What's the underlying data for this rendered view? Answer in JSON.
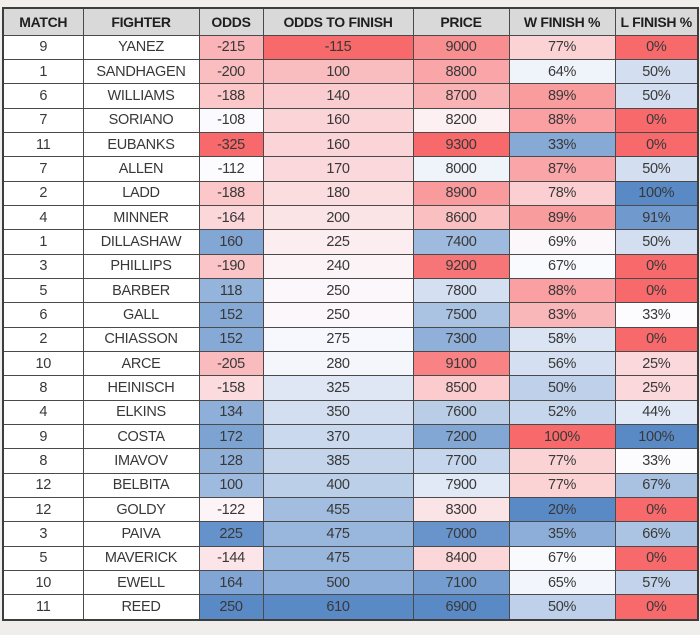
{
  "chart_data": {
    "type": "table",
    "title": "",
    "colors": {
      "scale_red": "#F8696B",
      "scale_mid": "#FCFCFF",
      "scale_blue": "#5A8AC6",
      "header_bg": "#D9D9D9",
      "header_text": "#1F1F1F",
      "cell_text": "#383838",
      "border": "#4A4A4A",
      "page_bg": "#EFEEEB"
    },
    "color_scale_note": "3-color diverging scale per column, midpoint at column median",
    "columns": [
      {
        "key": "match",
        "label": "MATCH",
        "scale": "none",
        "suffix": ""
      },
      {
        "key": "fighter",
        "label": "FIGHTER",
        "scale": "none",
        "suffix": ""
      },
      {
        "key": "odds",
        "label": "ODDS",
        "scale": "red_low_blue_high",
        "suffix": ""
      },
      {
        "key": "odds_to_finish",
        "label": "ODDS TO FINISH",
        "scale": "red_low_blue_high",
        "suffix": ""
      },
      {
        "key": "price",
        "label": "PRICE",
        "scale": "blue_low_red_high",
        "suffix": ""
      },
      {
        "key": "w_finish_pct",
        "label": "W FINISH %",
        "scale": "blue_low_red_high",
        "suffix": "%"
      },
      {
        "key": "l_finish_pct",
        "label": "L FINISH %",
        "scale": "red_low_blue_high",
        "suffix": "%"
      }
    ],
    "rows": [
      {
        "match": 9,
        "fighter": "YANEZ",
        "odds": -215,
        "odds_to_finish": -115,
        "price": 9000,
        "w_finish_pct": 77,
        "l_finish_pct": 0
      },
      {
        "match": 1,
        "fighter": "SANDHAGEN",
        "odds": -200,
        "odds_to_finish": 100,
        "price": 8800,
        "w_finish_pct": 64,
        "l_finish_pct": 50
      },
      {
        "match": 6,
        "fighter": "WILLIAMS",
        "odds": -188,
        "odds_to_finish": 140,
        "price": 8700,
        "w_finish_pct": 89,
        "l_finish_pct": 50
      },
      {
        "match": 7,
        "fighter": "SORIANO",
        "odds": -108,
        "odds_to_finish": 160,
        "price": 8200,
        "w_finish_pct": 88,
        "l_finish_pct": 0
      },
      {
        "match": 11,
        "fighter": "EUBANKS",
        "odds": -325,
        "odds_to_finish": 160,
        "price": 9300,
        "w_finish_pct": 33,
        "l_finish_pct": 0
      },
      {
        "match": 7,
        "fighter": "ALLEN",
        "odds": -112,
        "odds_to_finish": 170,
        "price": 8000,
        "w_finish_pct": 87,
        "l_finish_pct": 50
      },
      {
        "match": 2,
        "fighter": "LADD",
        "odds": -188,
        "odds_to_finish": 180,
        "price": 8900,
        "w_finish_pct": 78,
        "l_finish_pct": 100
      },
      {
        "match": 4,
        "fighter": "MINNER",
        "odds": -164,
        "odds_to_finish": 200,
        "price": 8600,
        "w_finish_pct": 89,
        "l_finish_pct": 91
      },
      {
        "match": 1,
        "fighter": "DILLASHAW",
        "odds": 160,
        "odds_to_finish": 225,
        "price": 7400,
        "w_finish_pct": 69,
        "l_finish_pct": 50
      },
      {
        "match": 3,
        "fighter": "PHILLIPS",
        "odds": -190,
        "odds_to_finish": 240,
        "price": 9200,
        "w_finish_pct": 67,
        "l_finish_pct": 0
      },
      {
        "match": 5,
        "fighter": "BARBER",
        "odds": 118,
        "odds_to_finish": 250,
        "price": 7800,
        "w_finish_pct": 88,
        "l_finish_pct": 0
      },
      {
        "match": 6,
        "fighter": "GALL",
        "odds": 152,
        "odds_to_finish": 250,
        "price": 7500,
        "w_finish_pct": 83,
        "l_finish_pct": 33
      },
      {
        "match": 2,
        "fighter": "CHIASSON",
        "odds": 152,
        "odds_to_finish": 275,
        "price": 7300,
        "w_finish_pct": 58,
        "l_finish_pct": 0
      },
      {
        "match": 10,
        "fighter": "ARCE",
        "odds": -205,
        "odds_to_finish": 280,
        "price": 9100,
        "w_finish_pct": 56,
        "l_finish_pct": 25
      },
      {
        "match": 8,
        "fighter": "HEINISCH",
        "odds": -158,
        "odds_to_finish": 325,
        "price": 8500,
        "w_finish_pct": 50,
        "l_finish_pct": 25
      },
      {
        "match": 4,
        "fighter": "ELKINS",
        "odds": 134,
        "odds_to_finish": 350,
        "price": 7600,
        "w_finish_pct": 52,
        "l_finish_pct": 44
      },
      {
        "match": 9,
        "fighter": "COSTA",
        "odds": 172,
        "odds_to_finish": 370,
        "price": 7200,
        "w_finish_pct": 100,
        "l_finish_pct": 100
      },
      {
        "match": 8,
        "fighter": "IMAVOV",
        "odds": 128,
        "odds_to_finish": 385,
        "price": 7700,
        "w_finish_pct": 77,
        "l_finish_pct": 33
      },
      {
        "match": 12,
        "fighter": "BELBITA",
        "odds": 100,
        "odds_to_finish": 400,
        "price": 7900,
        "w_finish_pct": 77,
        "l_finish_pct": 67
      },
      {
        "match": 12,
        "fighter": "GOLDY",
        "odds": -122,
        "odds_to_finish": 455,
        "price": 8300,
        "w_finish_pct": 20,
        "l_finish_pct": 0
      },
      {
        "match": 3,
        "fighter": "PAIVA",
        "odds": 225,
        "odds_to_finish": 475,
        "price": 7000,
        "w_finish_pct": 35,
        "l_finish_pct": 66
      },
      {
        "match": 5,
        "fighter": "MAVERICK",
        "odds": -144,
        "odds_to_finish": 475,
        "price": 8400,
        "w_finish_pct": 67,
        "l_finish_pct": 0
      },
      {
        "match": 10,
        "fighter": "EWELL",
        "odds": 164,
        "odds_to_finish": 500,
        "price": 7100,
        "w_finish_pct": 65,
        "l_finish_pct": 57
      },
      {
        "match": 11,
        "fighter": "REED",
        "odds": 250,
        "odds_to_finish": 610,
        "price": 6900,
        "w_finish_pct": 50,
        "l_finish_pct": 0
      }
    ]
  }
}
